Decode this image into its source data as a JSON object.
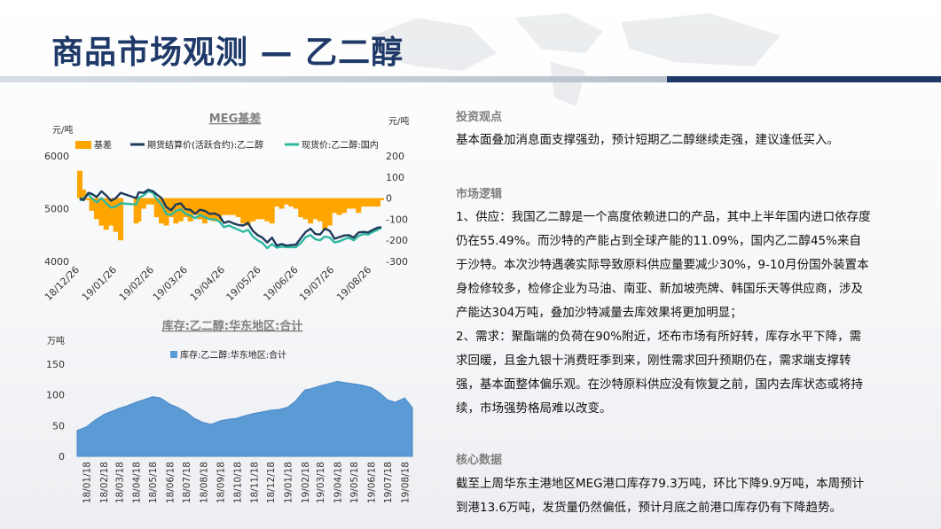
{
  "page": {
    "title": "商品市场观测 — 乙二醇"
  },
  "colors": {
    "title": "#1f3a68",
    "basis": "#FFA500",
    "futures": "#1F3A5A",
    "spot": "#2EB8A0",
    "inventory": "#5B9BD5"
  },
  "right": {
    "invest_heading": "投资观点",
    "invest_text": "基本面叠加消息面支撑强劲，预计短期乙二醇继续走强，建议逢低买入。",
    "logic_heading": "市场逻辑",
    "logic_supply": "1、供应：我国乙二醇是一个高度依赖进口的产品，其中上半年国内进口依存度仍在55.49%。而沙特的产能占到全球产能的11.09%，国内乙二醇45%来自于沙特。本次沙特遇袭实际导致原料供应量要减少30%，9-10月份国外装置本身检修较多，检修企业为马油、南亚、新加坡壳牌、韩国乐天等供应商，涉及产能达304万吨，叠加沙特减量去库效果将更加明显；",
    "logic_demand": "2、需求：聚酯端的负荷在90%附近，坯布市场有所好转，库存水平下降，需求回暖，且金九银十消费旺季到来，刚性需求回升预期仍在，需求端支撑转强，基本面整体偏乐观。在沙特原料供应没有恢复之前，国内去库状态或将持续，市场强势格局难以改变。",
    "data_heading": "核心数据",
    "data_text": "截至上周华东主港地区MEG港口库存79.3万吨，环比下降9.9万吨，本周预计到港13.6万吨，发货量仍然偏低，预计月底之前港口库存仍有下降趋势。"
  },
  "chart_data": [
    {
      "type": "line",
      "title": "MEG基差",
      "y_left_unit": "元/吨",
      "y_right_unit": "元/吨",
      "y_left_ticks": [
        "6000",
        "5000",
        "4000"
      ],
      "y_left_range": [
        4000,
        6000
      ],
      "y_right_ticks": [
        "200",
        "100",
        "0",
        "-100",
        "-200",
        "-300"
      ],
      "y_right_range": [
        -300,
        200
      ],
      "x_ticks": [
        "18/12/26",
        "19/01/26",
        "19/02/26",
        "19/03/26",
        "19/04/26",
        "19/05/26",
        "19/06/26",
        "19/07/26",
        "19/08/26"
      ],
      "x_range": [
        "2018-12-26",
        "2019-09-03"
      ],
      "legend": [
        "基差",
        "期货结算价(活跃合约):乙二醇",
        "现货价:乙二醇:国内"
      ],
      "legend_position": "top",
      "series": [
        {
          "name": "期货结算价(活跃合约):乙二醇",
          "axis": "left",
          "x": [
            "2018-12-26",
            "2018-12-29",
            "2019-01-02",
            "2019-01-05",
            "2019-01-09",
            "2019-01-13",
            "2019-01-17",
            "2019-01-21",
            "2019-01-25",
            "2019-01-29",
            "2019-02-11",
            "2019-02-13",
            "2019-02-17",
            "2019-02-21",
            "2019-02-25",
            "2019-02-28",
            "2019-03-04",
            "2019-03-08",
            "2019-03-12",
            "2019-03-16",
            "2019-03-20",
            "2019-03-24",
            "2019-03-28",
            "2019-04-01",
            "2019-04-05",
            "2019-04-09",
            "2019-04-13",
            "2019-04-17",
            "2019-04-21",
            "2019-04-25",
            "2019-04-29",
            "2019-05-03",
            "2019-05-07",
            "2019-05-11",
            "2019-05-15",
            "2019-05-19",
            "2019-05-23",
            "2019-05-27",
            "2019-05-31",
            "2019-06-04",
            "2019-06-08",
            "2019-06-12",
            "2019-06-16",
            "2019-06-20",
            "2019-06-24",
            "2019-06-28",
            "2019-07-02",
            "2019-07-06",
            "2019-07-10",
            "2019-07-14",
            "2019-07-18",
            "2019-07-22",
            "2019-07-26",
            "2019-07-30",
            "2019-08-03",
            "2019-08-07",
            "2019-08-11",
            "2019-08-15",
            "2019-08-19",
            "2019-08-23",
            "2019-08-27",
            "2019-08-31",
            "2019-09-03"
          ],
          "values": [
            5200,
            5160,
            5300,
            5280,
            5220,
            5330,
            5250,
            5150,
            5200,
            5300,
            5200,
            5310,
            5300,
            5360,
            5330,
            5270,
            5200,
            5030,
            4970,
            5080,
            5100,
            4990,
            4980,
            4900,
            4980,
            4960,
            4900,
            4910,
            4870,
            4730,
            4760,
            4720,
            4690,
            4680,
            4730,
            4580,
            4500,
            4450,
            4360,
            4450,
            4300,
            4330,
            4300,
            4310,
            4320,
            4440,
            4560,
            4620,
            4520,
            4510,
            4620,
            4580,
            4430,
            4460,
            4490,
            4500,
            4450,
            4550,
            4560,
            4550,
            4600,
            4640,
            4650
          ]
        },
        {
          "name": "现货价:乙二醇:国内",
          "axis": "left",
          "x": [
            "2018-12-26",
            "2018-12-29",
            "2019-01-02",
            "2019-01-05",
            "2019-01-09",
            "2019-01-13",
            "2019-01-17",
            "2019-01-21",
            "2019-01-25",
            "2019-01-29",
            "2019-02-11",
            "2019-02-13",
            "2019-02-17",
            "2019-02-21",
            "2019-02-25",
            "2019-02-28",
            "2019-03-04",
            "2019-03-08",
            "2019-03-12",
            "2019-03-16",
            "2019-03-20",
            "2019-03-24",
            "2019-03-28",
            "2019-04-01",
            "2019-04-05",
            "2019-04-09",
            "2019-04-13",
            "2019-04-17",
            "2019-04-21",
            "2019-04-25",
            "2019-04-29",
            "2019-05-03",
            "2019-05-07",
            "2019-05-11",
            "2019-05-15",
            "2019-05-19",
            "2019-05-23",
            "2019-05-27",
            "2019-05-31",
            "2019-06-04",
            "2019-06-08",
            "2019-06-12",
            "2019-06-16",
            "2019-06-20",
            "2019-06-24",
            "2019-06-28",
            "2019-07-02",
            "2019-07-06",
            "2019-07-10",
            "2019-07-14",
            "2019-07-18",
            "2019-07-22",
            "2019-07-26",
            "2019-07-30",
            "2019-08-03",
            "2019-08-07",
            "2019-08-11",
            "2019-08-15",
            "2019-08-19",
            "2019-08-23",
            "2019-08-27",
            "2019-08-31",
            "2019-09-03"
          ],
          "values": [
            5150,
            5200,
            5270,
            5200,
            5120,
            5200,
            5100,
            5020,
            5040,
            5100,
            5080,
            5200,
            5250,
            5330,
            5300,
            5180,
            5080,
            4900,
            4880,
            4960,
            4990,
            4900,
            4870,
            4820,
            4880,
            4840,
            4800,
            4800,
            4760,
            4650,
            4680,
            4640,
            4600,
            4560,
            4600,
            4470,
            4400,
            4350,
            4250,
            4330,
            4260,
            4280,
            4270,
            4270,
            4270,
            4350,
            4460,
            4500,
            4420,
            4400,
            4470,
            4450,
            4360,
            4380,
            4420,
            4450,
            4400,
            4480,
            4520,
            4510,
            4560,
            4600,
            4640
          ]
        },
        {
          "name": "基差",
          "type": "area",
          "axis": "right",
          "x": [
            "2018-12-26",
            "2018-12-29",
            "2019-01-02",
            "2019-01-05",
            "2019-01-09",
            "2019-01-13",
            "2019-01-17",
            "2019-01-21",
            "2019-01-25",
            "2019-01-29",
            "2019-02-11",
            "2019-02-13",
            "2019-02-17",
            "2019-02-21",
            "2019-02-25",
            "2019-02-28",
            "2019-03-04",
            "2019-03-08",
            "2019-03-12",
            "2019-03-16",
            "2019-03-20",
            "2019-03-24",
            "2019-03-28",
            "2019-04-01",
            "2019-04-05",
            "2019-04-09",
            "2019-04-13",
            "2019-04-17",
            "2019-04-21",
            "2019-04-25",
            "2019-04-29",
            "2019-05-03",
            "2019-05-07",
            "2019-05-11",
            "2019-05-15",
            "2019-05-19",
            "2019-05-23",
            "2019-05-27",
            "2019-05-31",
            "2019-06-04",
            "2019-06-08",
            "2019-06-12",
            "2019-06-16",
            "2019-06-20",
            "2019-06-24",
            "2019-06-28",
            "2019-07-02",
            "2019-07-06",
            "2019-07-10",
            "2019-07-14",
            "2019-07-18",
            "2019-07-22",
            "2019-07-26",
            "2019-07-30",
            "2019-08-03",
            "2019-08-07",
            "2019-08-11",
            "2019-08-15",
            "2019-08-19",
            "2019-08-23",
            "2019-08-27",
            "2019-08-31",
            "2019-09-03"
          ],
          "values": [
            130,
            40,
            -10,
            -60,
            -100,
            -130,
            -150,
            -130,
            -160,
            -200,
            -120,
            -110,
            -50,
            -30,
            -30,
            -90,
            -120,
            -130,
            -90,
            -120,
            -110,
            -90,
            -110,
            -80,
            -100,
            -120,
            -100,
            -110,
            -110,
            -80,
            -80,
            -80,
            -90,
            -120,
            -130,
            -110,
            -100,
            -100,
            -110,
            -120,
            -40,
            -50,
            -30,
            -40,
            -50,
            -90,
            -100,
            -120,
            -100,
            -110,
            -150,
            -130,
            -70,
            -80,
            -70,
            -50,
            -50,
            -70,
            -40,
            -40,
            -40,
            -40,
            -10
          ]
        }
      ]
    },
    {
      "type": "area",
      "title": "库存:乙二醇:华东地区:合计",
      "y_unit": "万吨",
      "y_ticks": [
        "150",
        "100",
        "50",
        "0"
      ],
      "y_range": [
        0,
        150
      ],
      "x_ticks": [
        "18/01/18",
        "18/02/18",
        "18/03/18",
        "18/04/18",
        "18/05/18",
        "18/06/18",
        "18/07/18",
        "18/08/18",
        "18/09/18",
        "18/10/18",
        "18/11/18",
        "18/12/18",
        "19/01/18",
        "19/02/18",
        "19/03/18",
        "19/04/18",
        "19/05/18",
        "19/06/18",
        "19/07/18",
        "19/08/18"
      ],
      "x_range": [
        "2018-01-01",
        "2019-09-01"
      ],
      "legend": [
        "库存:乙二醇:华东地区:合计"
      ],
      "legend_position": "top",
      "series": [
        {
          "name": "库存:乙二醇:华东地区:合计",
          "x": [
            "2018-01-01",
            "2018-01-18",
            "2018-02-01",
            "2018-02-18",
            "2018-03-01",
            "2018-03-18",
            "2018-04-01",
            "2018-04-18",
            "2018-05-01",
            "2018-05-18",
            "2018-06-01",
            "2018-06-18",
            "2018-07-01",
            "2018-07-18",
            "2018-08-01",
            "2018-08-18",
            "2018-09-01",
            "2018-09-18",
            "2018-10-01",
            "2018-10-18",
            "2018-11-01",
            "2018-11-18",
            "2018-12-01",
            "2018-12-18",
            "2019-01-01",
            "2019-01-18",
            "2019-02-01",
            "2019-02-18",
            "2019-03-01",
            "2019-03-18",
            "2019-04-01",
            "2019-04-18",
            "2019-05-01",
            "2019-05-18",
            "2019-06-01",
            "2019-06-18",
            "2019-07-01",
            "2019-07-18",
            "2019-08-01",
            "2019-08-18",
            "2019-09-01"
          ],
          "values": [
            42,
            48,
            58,
            68,
            72,
            78,
            82,
            88,
            92,
            97,
            95,
            85,
            80,
            72,
            62,
            55,
            52,
            58,
            60,
            62,
            66,
            70,
            72,
            75,
            76,
            80,
            90,
            108,
            110,
            115,
            118,
            122,
            120,
            118,
            116,
            112,
            105,
            92,
            88,
            95,
            79
          ]
        }
      ]
    }
  ]
}
